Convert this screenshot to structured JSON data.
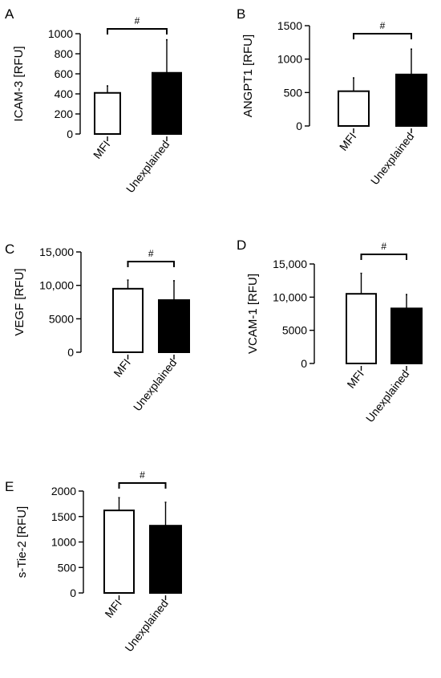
{
  "chart_data": [
    {
      "panel": "A",
      "type": "bar",
      "ylabel": "ICAM-3 [RFU]",
      "categories": [
        "MFI",
        "Unexplained"
      ],
      "values": [
        410,
        610
      ],
      "errors": [
        70,
        330
      ],
      "yticks": [
        "0",
        "200",
        "400",
        "600",
        "800",
        "1000"
      ],
      "ylim": [
        0,
        1000
      ],
      "annotation": "#"
    },
    {
      "panel": "B",
      "type": "bar",
      "ylabel": "ANGPT1 [RFU]",
      "categories": [
        "MFI",
        "Unexplained"
      ],
      "values": [
        520,
        770
      ],
      "errors": [
        200,
        380
      ],
      "yticks": [
        "0",
        "500",
        "1000",
        "1500"
      ],
      "ylim": [
        0,
        1500
      ],
      "annotation": "#"
    },
    {
      "panel": "C",
      "type": "bar",
      "ylabel": "VEGF [RFU]",
      "categories": [
        "MFI",
        "Unexplained"
      ],
      "values": [
        9500,
        7800
      ],
      "errors": [
        1300,
        2900
      ],
      "yticks": [
        "0",
        "5000",
        "10,000",
        "15,000"
      ],
      "ylim": [
        0,
        15000
      ],
      "annotation": "#"
    },
    {
      "panel": "D",
      "type": "bar",
      "ylabel": "VCAM-1 [RFU]",
      "categories": [
        "MFI",
        "Unexplained"
      ],
      "values": [
        10500,
        8300
      ],
      "errors": [
        3100,
        2100
      ],
      "yticks": [
        "0",
        "5000",
        "10,000",
        "15,000"
      ],
      "ylim": [
        0,
        15000
      ],
      "annotation": "#"
    },
    {
      "panel": "E",
      "type": "bar",
      "ylabel": "s-Tie-2 [RFU]",
      "categories": [
        "MFI",
        "Unexplained"
      ],
      "values": [
        1620,
        1320
      ],
      "errors": [
        250,
        460
      ],
      "yticks": [
        "0",
        "500",
        "1000",
        "1500",
        "2000"
      ],
      "ylim": [
        0,
        2000
      ],
      "annotation": "#"
    }
  ],
  "colors": {
    "MFI": "#ffffff",
    "Unexplained": "#000000",
    "axis": "#000000"
  }
}
